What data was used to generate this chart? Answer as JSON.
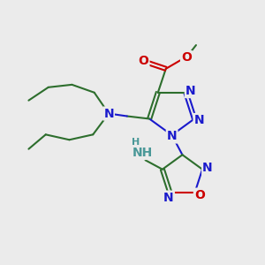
{
  "bg_color": "#ebebeb",
  "C": "#2d6e2d",
  "N": "#1a1acc",
  "O": "#cc0000",
  "H": "#4a9898",
  "bond_color": "#2d6e2d",
  "lw": 1.5,
  "fs": 10,
  "fs_small": 8
}
